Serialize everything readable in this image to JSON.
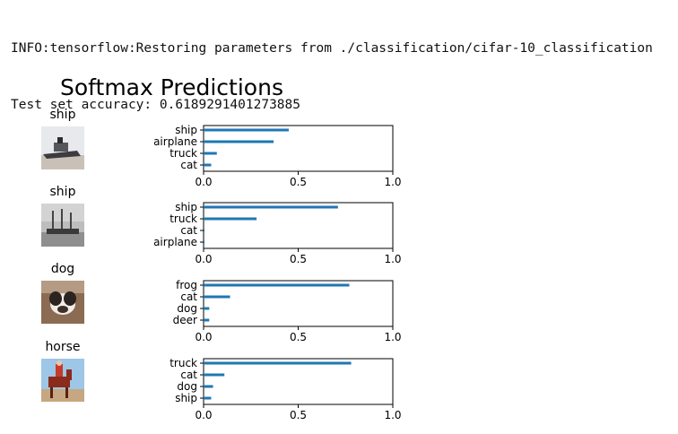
{
  "console": {
    "lines": [
      "INFO:tensorflow:Restoring parameters from ./classification/cifar-10_classification",
      "Test set accuracy: 0.6189291401273885"
    ]
  },
  "figure": {
    "title": "Softmax Predictions",
    "samples": [
      {
        "label": "ship",
        "image_icon": "ship-photo"
      },
      {
        "label": "ship",
        "image_icon": "ship-photo-grayscale"
      },
      {
        "label": "dog",
        "image_icon": "dog-photo"
      },
      {
        "label": "horse",
        "image_icon": "horse-rider-photo"
      }
    ]
  },
  "chart_data": [
    {
      "type": "bar",
      "orientation": "horizontal",
      "categories": [
        "ship",
        "airplane",
        "truck",
        "cat"
      ],
      "values": [
        0.45,
        0.37,
        0.07,
        0.04
      ],
      "xlim": [
        0,
        1
      ],
      "xticks": [
        "0.0",
        "0.5",
        "1.0"
      ],
      "color": "#1f77b4"
    },
    {
      "type": "bar",
      "orientation": "horizontal",
      "categories": [
        "ship",
        "truck",
        "cat",
        "airplane"
      ],
      "values": [
        0.71,
        0.28,
        0.003,
        0.003
      ],
      "xlim": [
        0,
        1
      ],
      "xticks": [
        "0.0",
        "0.5",
        "1.0"
      ],
      "color": "#1f77b4"
    },
    {
      "type": "bar",
      "orientation": "horizontal",
      "categories": [
        "frog",
        "cat",
        "dog",
        "deer"
      ],
      "values": [
        0.77,
        0.14,
        0.03,
        0.03
      ],
      "xlim": [
        0,
        1
      ],
      "xticks": [
        "0.0",
        "0.5",
        "1.0"
      ],
      "color": "#1f77b4"
    },
    {
      "type": "bar",
      "orientation": "horizontal",
      "categories": [
        "truck",
        "cat",
        "dog",
        "ship"
      ],
      "values": [
        0.78,
        0.11,
        0.05,
        0.04
      ],
      "xlim": [
        0,
        1
      ],
      "xticks": [
        "0.0",
        "0.5",
        "1.0"
      ],
      "color": "#1f77b4"
    }
  ]
}
